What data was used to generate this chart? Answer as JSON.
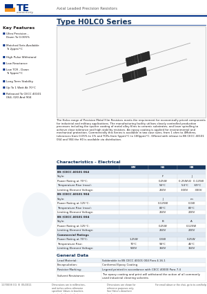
{
  "title": "Type H0LC0 Series",
  "header_text": "Axial Leaded Precision Resistors",
  "key_features_title": "Key Features",
  "key_features": [
    "Ultra Precision -\nDown To 0.005%",
    "Matched Sets Available\nTo 2ppm/°C",
    "High Pulse Withstand",
    "Low Reactance",
    "Low TCR - Down\nTo 5ppm/°C",
    "Long Term Stability",
    "Up To 1 Watt At 70°C",
    "Released To CECC 40101\n064, 020 And 904"
  ],
  "description": "The Holco range of Precision Metal Film Resistors meets the requirement for economically priced components for industrial and military applications. The manufacturing facility utilises closely controlled production processes including the sputter coating of metal alloy films to ceramic substrates, and laser spiralling to achieve close tolerance and high stability resistors. An epoxy coating is applied for environmental and mechanical protection. Commercially this Series is available in two case sizes, from 1 ohm to 4Mohms, tolerances from 0.05% to 1% and TCRs from 5ppm/°C to 100ppm/°C. Offered with release to BS CECC 40101 064 and 904 the H0 is available via distribution.",
  "characteristics_title": "Characteristics - Electrical",
  "col_headers": [
    "",
    "HM",
    "H4",
    "HB"
  ],
  "section1_title": "BS (CECC 40101 064",
  "section1_rows": [
    [
      "Style:",
      "",
      "F",
      "J"
    ],
    [
      "Power Rating at 70°C:",
      "",
      "0.25W",
      "0.25W(4)  0.125W"
    ],
    [
      "Temperature Rise (max):",
      "",
      "54°C",
      "54°C       69°C"
    ],
    [
      "Limiting Element Voltage:",
      "",
      "250V",
      "300V        300V"
    ]
  ],
  "section2_title": "BS (CECC 40101 904",
  "section2_rows": [
    [
      "Style:",
      "",
      "J",
      "m"
    ],
    [
      "Power Rating at 125°C:",
      "",
      "0.125W",
      "0.1W"
    ],
    [
      "Temperature Rise (max):",
      "",
      "80°C",
      "80°C"
    ],
    [
      "Limiting Element Voltage:",
      "",
      "250V",
      "200V"
    ]
  ],
  "section3_title": "BS (CECC 40101 004",
  "section3_rows": [
    [
      "Style:",
      "",
      "B",
      "A"
    ],
    [
      "Power Rating at 125°C:",
      "",
      "0.25W",
      "0.125W"
    ],
    [
      "Limiting Element Voltage:",
      "",
      "250V",
      "200V"
    ]
  ],
  "section4_title": "Commercial Ratings",
  "section4_rows": [
    [
      "Power Rating at 70°C:",
      "1.25W",
      "0.5W",
      "0.25W"
    ],
    [
      "Temperature Rise:",
      "70°C",
      "94°C",
      "46°C"
    ],
    [
      "Limiting Element Voltage:",
      "500V",
      "350V",
      "350V"
    ]
  ],
  "general_data_title": "General Data",
  "general_data_rows": [
    [
      "Lead Material:",
      "Solderable to BS CECC 40101 004 Para 4.16.1"
    ],
    [
      "Encapsulation:",
      "Conformal Epoxy Coating"
    ],
    [
      "Resistor Marking:",
      "Legend printed in accordance with CECC 40000 Para 7.4"
    ],
    [
      "Solvent Resistance:",
      "The epoxy coating and print will withstand the action of all commonly\nused industrial cleaning solvents"
    ]
  ],
  "footer_left": "1170038 CG  B  05/2011",
  "footer_mid1": "Dimensions are in millimetres,\nand inches unless otherwise\nspecified. Values in brackets\nare standard equivalents.",
  "footer_mid2": "Dimensions are shown for\nreference purposes only.\nSee Holco's datasheet\nto change.",
  "footer_right": "For email above or the chat, go to te.com/help",
  "bg_color": "#ffffff",
  "te_blue": "#003087",
  "te_blue2": "#1a5fa8",
  "te_orange": "#f7941d",
  "te_stripe1": "#0070c0",
  "text_color": "#231f20",
  "small_text_color": "#595959",
  "table_header_bg": "#17375e",
  "section_bg": "#dce6f1",
  "row_bg1": "#eaf1f8",
  "row_bg2": "#ffffff",
  "title_blue": "#17375e",
  "border_color": "#aaaaaa"
}
